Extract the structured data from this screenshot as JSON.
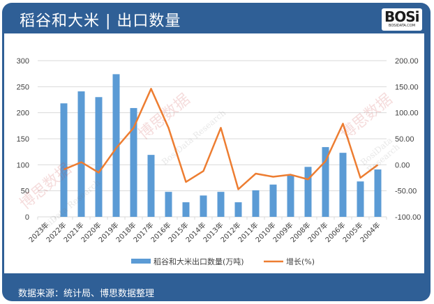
{
  "header": {
    "title": "稻谷和大米 | 出口数量",
    "logo_text": "BOSi",
    "logo_sub": "BOSIDATA.COM"
  },
  "footer": {
    "source": "数据来源：统计局、博思数据整理"
  },
  "watermark": {
    "cn": "博思数据",
    "en": "BosiData Research"
  },
  "colors": {
    "header_bg": "#2f5f96",
    "bar": "#5b9bd5",
    "line": "#ed7d31",
    "grid": "#d9d9d9",
    "text": "#404040"
  },
  "chart_data": {
    "type": "bar+line",
    "title": "稻谷和大米 | 出口数量",
    "categories": [
      "2023年",
      "2022年",
      "2021年",
      "2020年",
      "2019年",
      "2018年",
      "2017年",
      "2016年",
      "2015年",
      "2014年",
      "2013年",
      "2012年",
      "2011年",
      "2010年",
      "2009年",
      "2008年",
      "2007年",
      "2006年",
      "2005年",
      "2004年"
    ],
    "series": [
      {
        "name": "稻谷和大米出口数量(万吨)",
        "type": "bar",
        "axis": "left",
        "values": [
          null,
          218,
          241,
          230,
          274,
          209,
          119,
          48,
          28,
          41,
          48,
          28,
          51,
          62,
          79,
          96,
          134,
          123,
          68,
          91
        ]
      },
      {
        "name": "增长(%)",
        "type": "line",
        "axis": "right",
        "values": [
          null,
          -9,
          5,
          -15,
          32,
          71,
          146,
          71,
          -33,
          -12,
          71,
          -47,
          -17,
          -23,
          -19,
          -28,
          7,
          79,
          -25,
          0
        ]
      }
    ],
    "left_axis": {
      "ylim": [
        0,
        300
      ],
      "ticks": [
        "0",
        "50",
        "100",
        "150",
        "200",
        "250",
        "300"
      ]
    },
    "right_axis": {
      "ylim": [
        -100,
        200
      ],
      "ticks": [
        "-100.00",
        "-50.00",
        "0.00",
        "50.00",
        "100.00",
        "150.00",
        "200.00"
      ]
    },
    "grid": true,
    "legend_position": "bottom",
    "legend": [
      "稻谷和大米出口数量(万吨)",
      "增长(%)"
    ]
  }
}
